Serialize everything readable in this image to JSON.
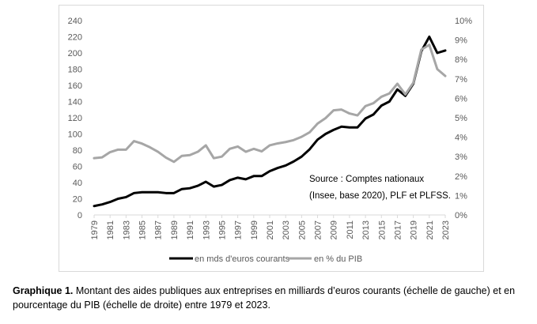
{
  "chart_data": {
    "type": "line",
    "x": [
      1979,
      1980,
      1981,
      1982,
      1983,
      1984,
      1985,
      1986,
      1987,
      1988,
      1989,
      1990,
      1991,
      1992,
      1993,
      1994,
      1995,
      1996,
      1997,
      1998,
      1999,
      2000,
      2001,
      2002,
      2003,
      2004,
      2005,
      2006,
      2007,
      2008,
      2009,
      2010,
      2011,
      2012,
      2013,
      2014,
      2015,
      2016,
      2017,
      2018,
      2019,
      2020,
      2021,
      2022,
      2023
    ],
    "x_tick_labels": [
      "1979",
      "1981",
      "1983",
      "1985",
      "1987",
      "1989",
      "1991",
      "1993",
      "1995",
      "1997",
      "1999",
      "2001",
      "2003",
      "2005",
      "2007",
      "2009",
      "2011",
      "2013",
      "2015",
      "2017",
      "2019",
      "2021",
      "2023"
    ],
    "y_left_ticks": [
      "0",
      "20",
      "40",
      "60",
      "80",
      "100",
      "120",
      "140",
      "160",
      "180",
      "200",
      "220",
      "240"
    ],
    "y_right_ticks": [
      "0%",
      "1%",
      "2%",
      "3%",
      "4%",
      "5%",
      "6%",
      "7%",
      "8%",
      "9%",
      "10%"
    ],
    "ylim_left": [
      0,
      240
    ],
    "ylim_right": [
      0,
      10
    ],
    "series": [
      {
        "name": "en mds d'euros courants",
        "axis": "left",
        "color": "#000000",
        "values": [
          11,
          13,
          16,
          20,
          22,
          27,
          28,
          28,
          28,
          27,
          27,
          32,
          33,
          36,
          41,
          35,
          37,
          43,
          46,
          44,
          48,
          48,
          54,
          58,
          61,
          66,
          72,
          81,
          93,
          100,
          105,
          109,
          108,
          108,
          119,
          124,
          135,
          140,
          155,
          147,
          162,
          202,
          220,
          200,
          203
        ]
      },
      {
        "name": "en % du PIB",
        "axis": "right",
        "color": "#a6a6a6",
        "values": [
          2.92,
          2.96,
          3.23,
          3.36,
          3.36,
          3.8,
          3.67,
          3.48,
          3.25,
          2.95,
          2.73,
          3.04,
          3.08,
          3.25,
          3.58,
          2.92,
          3.0,
          3.4,
          3.52,
          3.25,
          3.4,
          3.27,
          3.58,
          3.68,
          3.75,
          3.85,
          4.02,
          4.25,
          4.7,
          4.98,
          5.38,
          5.42,
          5.22,
          5.12,
          5.6,
          5.75,
          6.08,
          6.25,
          6.75,
          6.2,
          6.8,
          8.5,
          8.75,
          7.5,
          7.15
        ]
      }
    ],
    "annotation": [
      "Source : Comptes nationaux",
      "(Insee, base 2020), PLF et PLFSS."
    ],
    "legend_position": "bottom",
    "grid": false
  },
  "caption": {
    "label": "Graphique 1.",
    "text": " Montant des aides publiques aux entreprises en milliards d’euros courants (échelle de gauche) et en pourcentage du PIB (échelle de droite) entre 1979 et 2023."
  }
}
